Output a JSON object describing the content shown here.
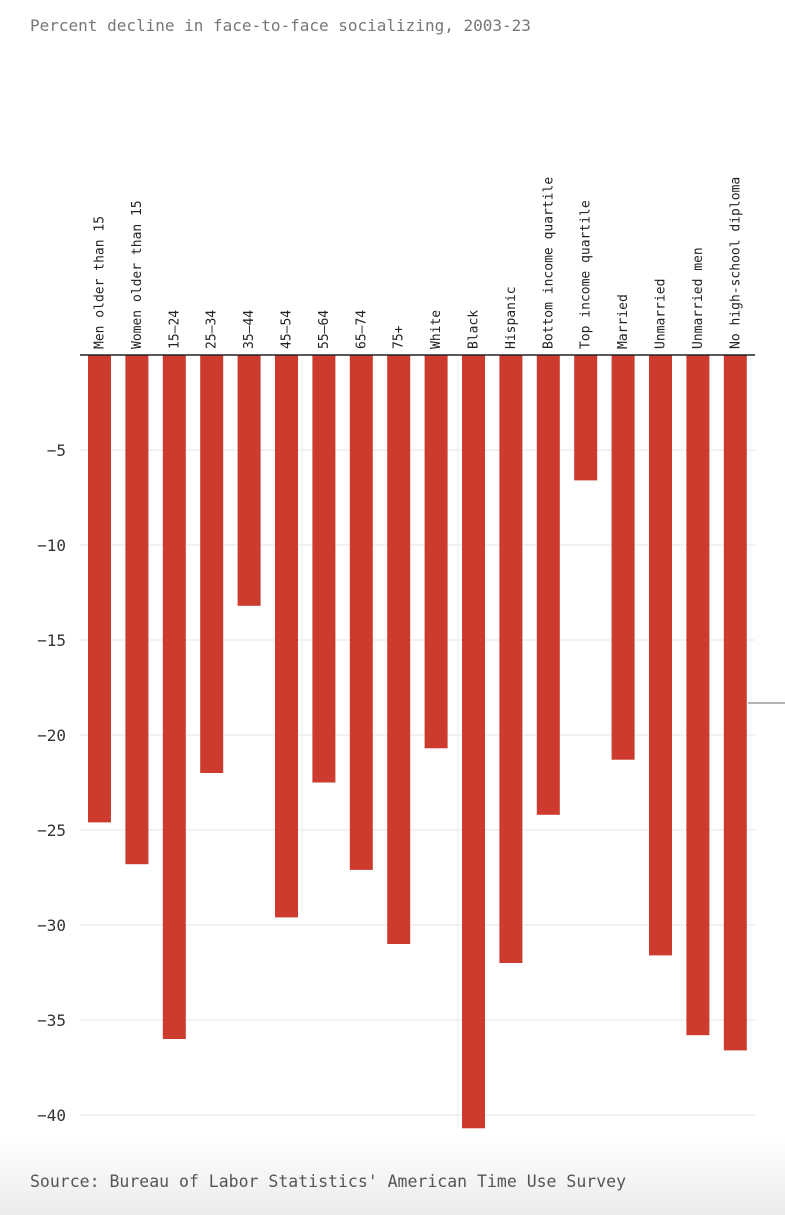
{
  "chart_data": {
    "type": "bar",
    "title": "Percent decline in face-to-face socializing, 2003-23",
    "source": "Source: Bureau of Labor Statistics' American Time Use Survey",
    "xlabel": "",
    "ylabel": "",
    "ylim": [
      -41,
      0
    ],
    "yticks": [
      -5,
      -10,
      -15,
      -20,
      -25,
      -30,
      -35,
      -40
    ],
    "grid": true,
    "bar_color": "#cc3b2d",
    "categories": [
      "Men older than 15",
      "Women older than 15",
      "15–24",
      "25–34",
      "35–44",
      "45–54",
      "55–64",
      "65–74",
      "75+",
      "White",
      "Black",
      "Hispanic",
      "Bottom income quartile",
      "Top income quartile",
      "Married",
      "Unmarried",
      "Unmarried men",
      "No high-school diploma"
    ],
    "values": [
      -24.6,
      -26.8,
      -36.0,
      -22.0,
      -13.2,
      -29.6,
      -22.5,
      -27.1,
      -31.0,
      -20.7,
      -40.7,
      -32.0,
      -24.2,
      -6.6,
      -21.3,
      -31.6,
      -35.8,
      -36.6
    ]
  }
}
